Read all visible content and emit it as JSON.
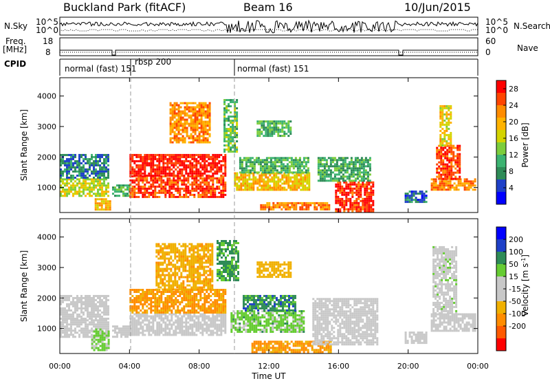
{
  "header": {
    "site": "Buckland Park (fitACF)",
    "beam": "Beam 16",
    "date": "10/Jun/2015"
  },
  "param_labels": {
    "nsky": "N.Sky",
    "nsearch": "N.Search",
    "freq_line1": "Freq.",
    "freq_line2": "[MHz]",
    "nave": "Nave",
    "cpid": "CPID"
  },
  "noise_axis": {
    "left_ticks": [
      "10^5",
      "10^0"
    ],
    "right_ticks": [
      "10^5",
      "10^0"
    ]
  },
  "freq_axis": {
    "left_ticks": [
      "18",
      "8"
    ],
    "right_ticks": [
      "60",
      "0"
    ]
  },
  "cpid_modes": [
    "normal (fast) 151",
    "rbsp 200",
    "normal (fast) 151"
  ],
  "chart_data": [
    {
      "type": "heatmap",
      "title": "",
      "xlabel": "",
      "ylabel": "Slant Range [km]",
      "x_ticks": [
        "00:00",
        "04:00",
        "08:00",
        "12:00",
        "16:00",
        "20:00",
        "00:00"
      ],
      "y_ticks": [
        "1000",
        "2000",
        "3000",
        "4000"
      ],
      "xlim_hours": [
        0,
        24
      ],
      "ylim_km": [
        180,
        4600
      ],
      "colorbar": {
        "label": "Power [dB]",
        "ticks": [
          "28",
          "24",
          "20",
          "16",
          "12",
          "8",
          "4"
        ],
        "range": [
          0,
          30
        ]
      },
      "regions": [
        {
          "t": [
            0.0,
            2.8
          ],
          "r": [
            700,
            1300
          ],
          "value": 16
        },
        {
          "t": [
            0.0,
            2.8
          ],
          "r": [
            1300,
            2100
          ],
          "value": 7
        },
        {
          "t": [
            2.0,
            2.9
          ],
          "r": [
            250,
            650
          ],
          "value": 20
        },
        {
          "t": [
            3.0,
            4.0
          ],
          "r": [
            700,
            1100
          ],
          "value": 10
        },
        {
          "t": [
            4.0,
            9.5
          ],
          "r": [
            700,
            1400
          ],
          "value": 26
        },
        {
          "t": [
            4.0,
            9.5
          ],
          "r": [
            1400,
            2100
          ],
          "value": 28
        },
        {
          "t": [
            6.3,
            8.6
          ],
          "r": [
            2500,
            3800
          ],
          "value": 22
        },
        {
          "t": [
            9.4,
            10.2
          ],
          "r": [
            2200,
            3900
          ],
          "value": 12
        },
        {
          "t": [
            10.0,
            14.3
          ],
          "r": [
            900,
            1500
          ],
          "value": 19
        },
        {
          "t": [
            10.3,
            14.3
          ],
          "r": [
            1500,
            2000
          ],
          "value": 11
        },
        {
          "t": [
            11.3,
            13.2
          ],
          "r": [
            2700,
            3200
          ],
          "value": 11
        },
        {
          "t": [
            11.5,
            15.5
          ],
          "r": [
            280,
            520
          ],
          "value": 23
        },
        {
          "t": [
            15.8,
            18.0
          ],
          "r": [
            250,
            1200
          ],
          "value": 27
        },
        {
          "t": [
            14.8,
            17.8
          ],
          "r": [
            1200,
            2000
          ],
          "value": 10
        },
        {
          "t": [
            19.8,
            21.0
          ],
          "r": [
            500,
            900
          ],
          "value": 6
        },
        {
          "t": [
            21.3,
            23.9
          ],
          "r": [
            900,
            1300
          ],
          "value": 22
        },
        {
          "t": [
            21.6,
            23.0
          ],
          "r": [
            1300,
            2400
          ],
          "value": 26
        },
        {
          "t": [
            21.8,
            22.5
          ],
          "r": [
            2400,
            3700
          ],
          "value": 18
        }
      ]
    },
    {
      "type": "heatmap",
      "title": "",
      "xlabel": "Time UT",
      "ylabel": "Slant Range [km]",
      "x_ticks": [
        "00:00",
        "04:00",
        "08:00",
        "12:00",
        "16:00",
        "20:00",
        "00:00"
      ],
      "y_ticks": [
        "1000",
        "2000",
        "3000",
        "4000"
      ],
      "xlim_hours": [
        0,
        24
      ],
      "ylim_km": [
        180,
        4600
      ],
      "colorbar": {
        "label": "Velocity [m s^-1]",
        "ticks": [
          "200",
          "100",
          "50",
          "15",
          "-15",
          "-50",
          "-100",
          "-200"
        ],
        "levels": [
          -250,
          -200,
          -100,
          -50,
          -15,
          15,
          50,
          100,
          200,
          250
        ]
      },
      "regions": [
        {
          "t": [
            0.0,
            2.8
          ],
          "r": [
            700,
            1300
          ],
          "value": 0
        },
        {
          "t": [
            0.0,
            2.8
          ],
          "r": [
            1300,
            2100
          ],
          "value": 0
        },
        {
          "t": [
            1.8,
            2.8
          ],
          "r": [
            300,
            1000
          ],
          "value": 60
        },
        {
          "t": [
            3.0,
            4.0
          ],
          "r": [
            700,
            1100
          ],
          "value": 0
        },
        {
          "t": [
            4.0,
            9.5
          ],
          "r": [
            800,
            1500
          ],
          "value": 0
        },
        {
          "t": [
            4.0,
            9.5
          ],
          "r": [
            1500,
            2300
          ],
          "value": -60
        },
        {
          "t": [
            5.5,
            8.8
          ],
          "r": [
            2300,
            3800
          ],
          "value": -40
        },
        {
          "t": [
            9.0,
            10.2
          ],
          "r": [
            2600,
            3900
          ],
          "value": 120
        },
        {
          "t": [
            9.8,
            14.0
          ],
          "r": [
            900,
            1600
          ],
          "value": 70
        },
        {
          "t": [
            10.5,
            13.5
          ],
          "r": [
            1600,
            2100
          ],
          "value": 150
        },
        {
          "t": [
            11.3,
            13.2
          ],
          "r": [
            2700,
            3200
          ],
          "value": -30
        },
        {
          "t": [
            11.0,
            15.5
          ],
          "r": [
            250,
            600
          ],
          "value": -60
        },
        {
          "t": [
            14.5,
            18.2
          ],
          "r": [
            500,
            2000
          ],
          "value": 0
        },
        {
          "t": [
            19.8,
            21.0
          ],
          "r": [
            500,
            900
          ],
          "value": 0
        },
        {
          "t": [
            21.3,
            23.9
          ],
          "r": [
            900,
            1500
          ],
          "value": 0
        },
        {
          "t": [
            21.4,
            22.8
          ],
          "r": [
            1500,
            3700
          ],
          "value": 35
        }
      ]
    }
  ]
}
